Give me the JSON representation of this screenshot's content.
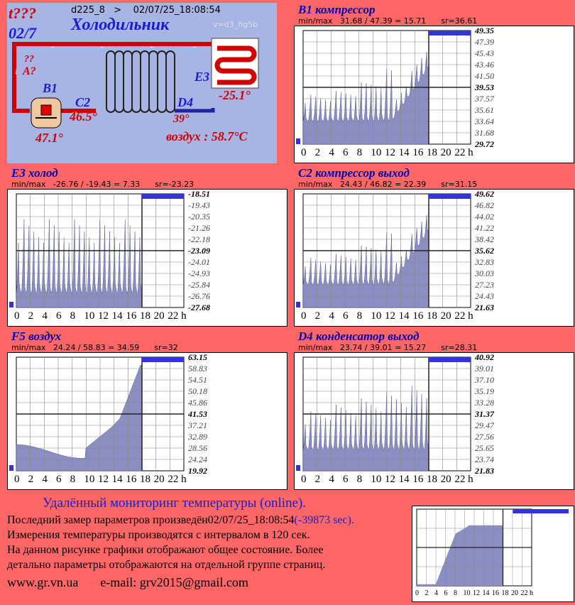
{
  "header": {
    "alert": "t???",
    "date_short": "02/7",
    "device_line": "d225_8   >    02/07/25_18:08:54",
    "version": "v=d3_fig5b",
    "title": "Холодильник",
    "qq": "??",
    "a_label": "A?",
    "b1_label": "B1",
    "b1_value": "47.1°",
    "c2_label": "C2",
    "c2_value": "46.5°",
    "d4_label": "D4",
    "d4_value": "39°",
    "e3_label": "E3",
    "e3_value": "-25.1°",
    "air": "воздух : 58.7°C"
  },
  "x_ticks": [
    "0",
    "2",
    "4",
    "6",
    "8",
    "10",
    "12",
    "14",
    "16",
    "18",
    "20",
    "22 h"
  ],
  "charts": [
    {
      "title": "B1 компрессор",
      "minmax": "min/max   31.68 / 47.39 = 15.71      sr=36.61",
      "yticks": [
        "49.35",
        "47.39",
        "45.43",
        "43.46",
        "41.50",
        "39.53",
        "37.57",
        "35.61",
        "33.64",
        "31.68",
        "29.72"
      ],
      "bold_ticks": [
        0,
        5,
        10
      ]
    },
    {
      "title": "E3 холод",
      "minmax": "min/max   -26.76 / -19.43 = 7.33      sr=-23.23",
      "yticks": [
        "-18.51",
        "-19.43",
        "-20.35",
        "-21.26",
        "-22.18",
        "-23.09",
        "-24.01",
        "-24.93",
        "-25.84",
        "-26.76",
        "-27.68"
      ],
      "bold_ticks": [
        0,
        5,
        10
      ]
    },
    {
      "title": "F5 воздух",
      "minmax": "min/max   24.24 / 58.83 = 34.59      sr=32",
      "yticks": [
        "63.15",
        "58.83",
        "54.51",
        "50.18",
        "45.86",
        "41.53",
        "37.21",
        "32.89",
        "28.56",
        "24.24",
        "19.92"
      ],
      "bold_ticks": [
        0,
        5,
        10
      ]
    },
    {
      "title": "C2 компрессор выход",
      "minmax": "min/max   24.43 / 46.82 = 22.39      sr=31.15",
      "yticks": [
        "49.62",
        "46.82",
        "44.02",
        "41.22",
        "38.42",
        "35.62",
        "32.83",
        "30.03",
        "27.23",
        "24.43",
        "21.63"
      ],
      "bold_ticks": [
        0,
        5,
        10
      ]
    },
    {
      "title": "D4 конденсатор выход",
      "minmax": "min/max   23.74 / 39.01 = 15.27      sr=28.31",
      "yticks": [
        "40.92",
        "39.01",
        "37.10",
        "35.19",
        "33.28",
        "31.37",
        "29.47",
        "27.56",
        "25.65",
        "23.74",
        "21.83"
      ],
      "bold_ticks": [
        0,
        5,
        10
      ]
    }
  ],
  "footer": {
    "heading": "Удалённый мониторинг температуры (online).",
    "line1_a": "Последний замер параметров произведён",
    "line1_b": "02/07/25_18:08:54",
    "line1_c": "(-39873 sec).",
    "line2": "Измерения температуры  производятся с интервалом в 120 сек.",
    "line3": "На данном рисунке графики отображают общее состояние. Более",
    "line4": "детально параметры отображаются на отдельной группе страниц.",
    "site": "www.gr.vn.ua",
    "email": "e-mail: grv2015@gmail.com"
  },
  "mini_x_ticks": [
    "0",
    "2",
    "4",
    "6",
    "8",
    "10",
    "12",
    "14",
    "16",
    "18",
    "20",
    "22 h"
  ],
  "colors": {
    "background": "#ff6666",
    "fill": "#8a8ec0",
    "title": "#0000b0",
    "bar": "#3333dd"
  }
}
